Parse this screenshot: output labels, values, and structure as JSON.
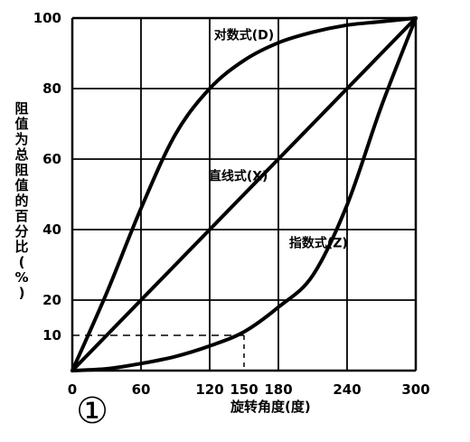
{
  "chart_data": {
    "type": "line",
    "xlabel": "旋转角度(度)",
    "ylabel": "阻值为总阻值的百分比(%)",
    "figure_number": "①",
    "xlim": [
      0,
      300
    ],
    "ylim": [
      0,
      100
    ],
    "x_ticks": [
      {
        "value": 0,
        "label": "0"
      },
      {
        "value": 60,
        "label": "60"
      },
      {
        "value": 120,
        "label": "120"
      },
      {
        "value": 150,
        "label": "150"
      },
      {
        "value": 180,
        "label": "180"
      },
      {
        "value": 240,
        "label": "240"
      },
      {
        "value": 300,
        "label": "300"
      }
    ],
    "y_ticks": [
      {
        "value": 10,
        "label": "10"
      },
      {
        "value": 20,
        "label": "20"
      },
      {
        "value": 40,
        "label": "40"
      },
      {
        "value": 60,
        "label": "60"
      },
      {
        "value": 80,
        "label": "80"
      },
      {
        "value": 100,
        "label": "100"
      }
    ],
    "grid": true,
    "gridlines_x": [
      0,
      60,
      120,
      180,
      240,
      300
    ],
    "gridlines_y": [
      0,
      20,
      40,
      60,
      80,
      100
    ],
    "reference_line": {
      "style": "dashed",
      "x": [
        0,
        150
      ],
      "y": [
        10,
        10
      ]
    },
    "series": [
      {
        "name": "对数式(D)",
        "x": [
          0,
          30,
          60,
          90,
          120,
          150,
          180,
          210,
          240,
          270,
          300
        ],
        "y": [
          0,
          22,
          46,
          67,
          80,
          88,
          93,
          96,
          98,
          99,
          100
        ]
      },
      {
        "name": "直线式(X)",
        "x": [
          0,
          300
        ],
        "y": [
          0,
          100
        ]
      },
      {
        "name": "指数式(Z)",
        "x": [
          0,
          30,
          60,
          90,
          120,
          150,
          180,
          210,
          240,
          270,
          300
        ],
        "y": [
          0,
          0.5,
          2,
          4,
          7,
          11,
          18,
          27,
          47,
          75,
          100
        ]
      }
    ],
    "curve_labels": [
      {
        "series": 0,
        "text": "对数式(D)",
        "at_x": 150,
        "at_y": 94
      },
      {
        "series": 1,
        "text": "直线式(X)",
        "at_x": 145,
        "at_y": 54
      },
      {
        "series": 2,
        "text": "指数式(Z)",
        "at_x": 215,
        "at_y": 35
      }
    ]
  }
}
